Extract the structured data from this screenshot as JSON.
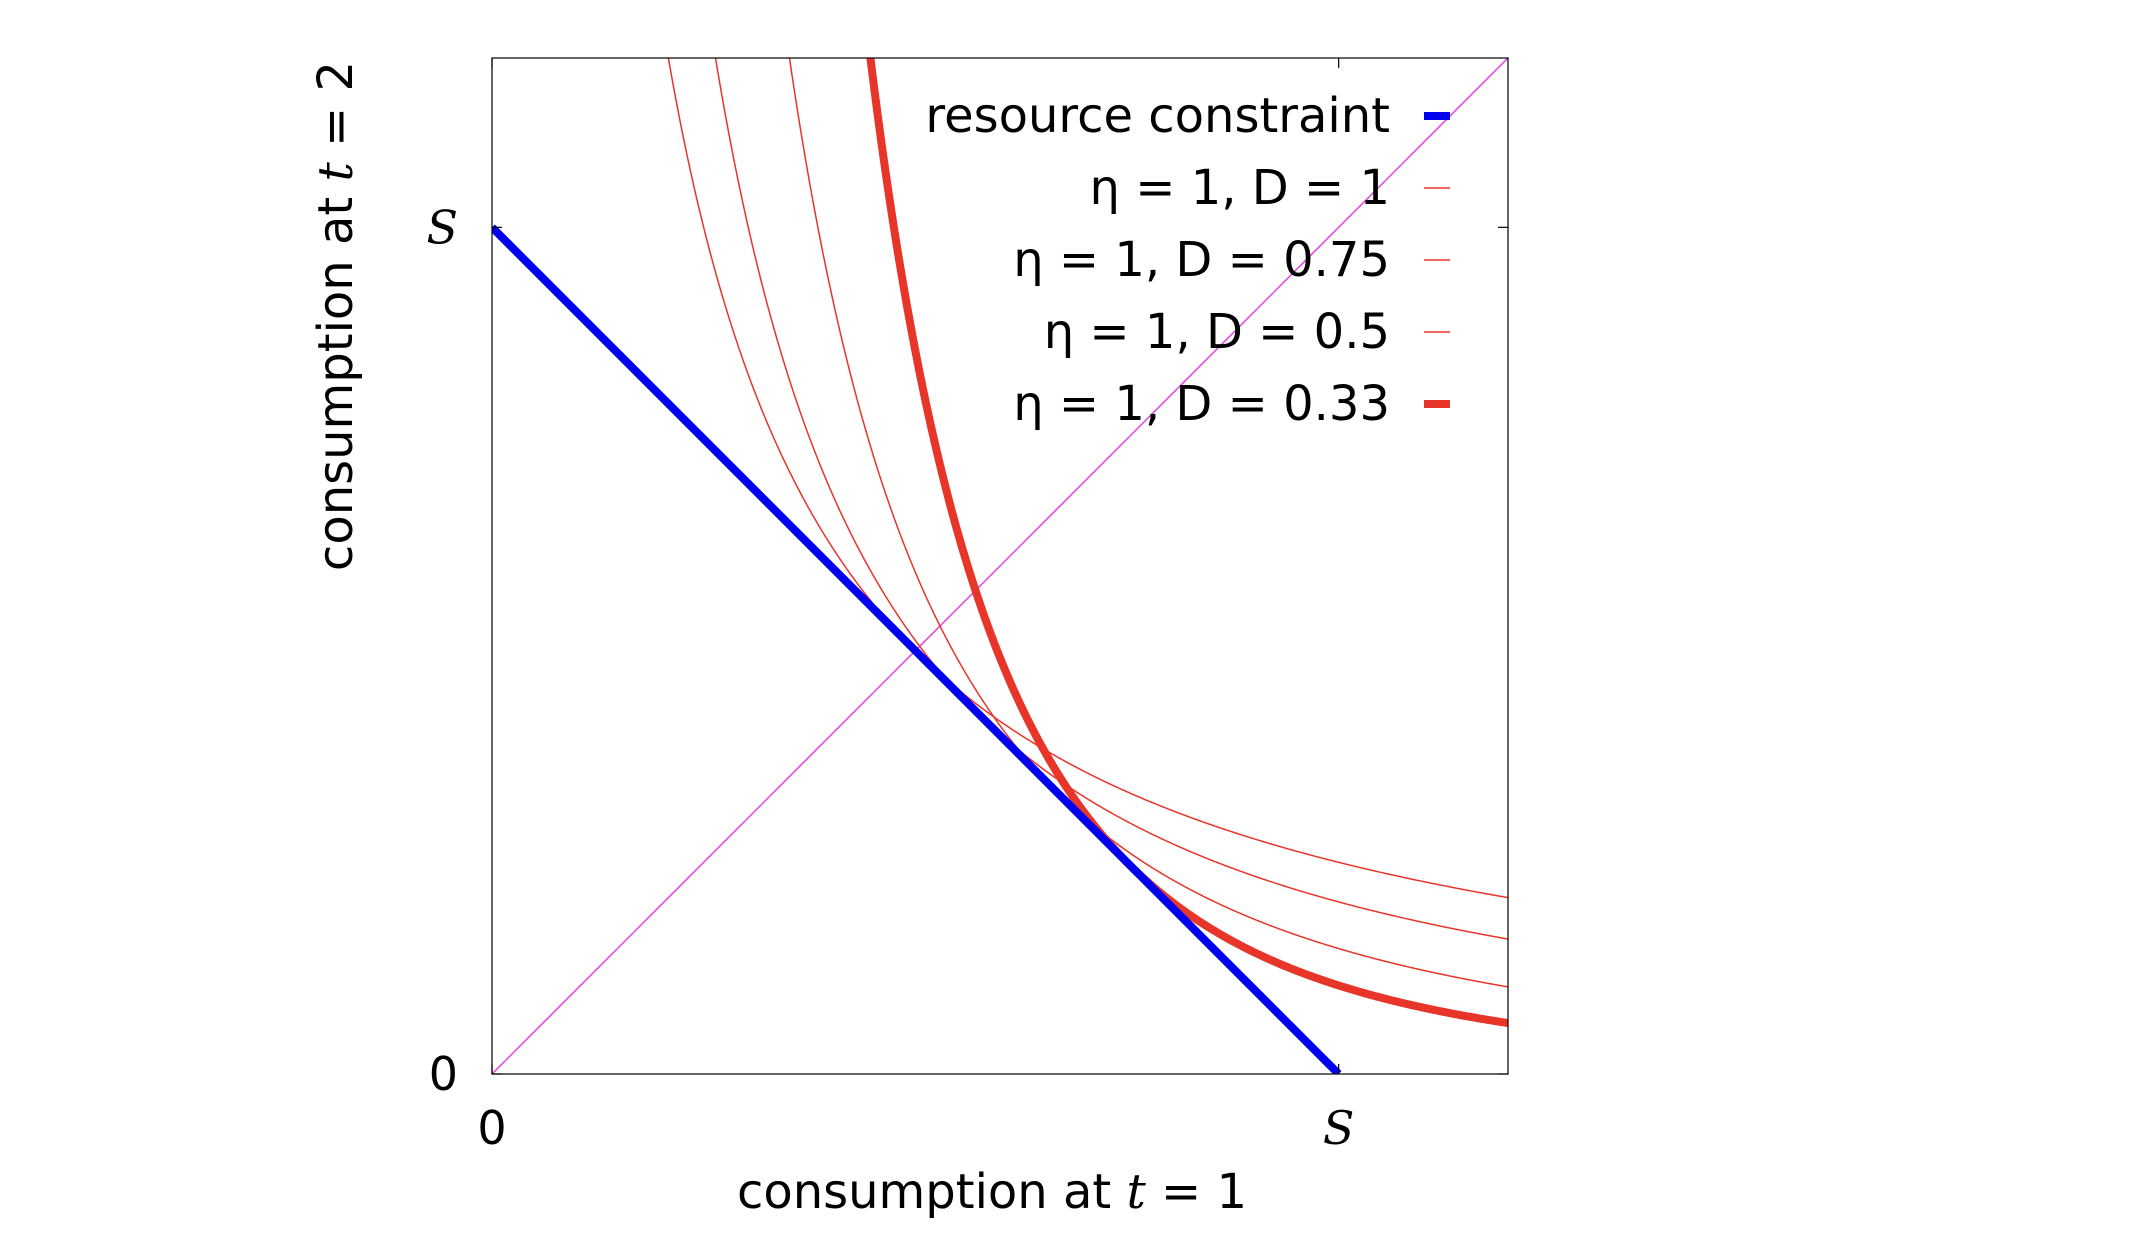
{
  "chart_data": {
    "type": "line",
    "title": "",
    "xlabel": {
      "prefix": "consumption at ",
      "var": "t",
      "suffix": " = 1"
    },
    "ylabel": {
      "prefix": "consumption at ",
      "var": "t",
      "suffix": " = 2"
    },
    "xlim": [
      0,
      1.2
    ],
    "ylim": [
      0,
      1.2
    ],
    "x_ticks": [
      {
        "value": 0,
        "label": "0",
        "italic": false
      },
      {
        "value": 1,
        "label": "S",
        "italic": true
      }
    ],
    "y_ticks": [
      {
        "value": 0,
        "label": "0",
        "italic": false
      },
      {
        "value": 1,
        "label": "S",
        "italic": true
      }
    ],
    "grid": false,
    "legend_position": "top-right",
    "colors": {
      "constraint": "#0000ee",
      "indifference": "#e8352a",
      "diagonal": "#e040e0"
    },
    "series": [
      {
        "name": "resource constraint",
        "kind": "constraint",
        "x": [
          0,
          1
        ],
        "y": [
          1,
          0
        ],
        "color": "#0000ee",
        "width": 8
      },
      {
        "name": "η = 1,  D = 1",
        "kind": "indifference",
        "eta": 1,
        "D": 1,
        "color": "#e8352a",
        "width": 1.5
      },
      {
        "name": "η = 1,  D = 0.75",
        "kind": "indifference",
        "eta": 1,
        "D": 0.75,
        "color": "#e8352a",
        "width": 1.5
      },
      {
        "name": "η = 1,  D = 0.5",
        "kind": "indifference",
        "eta": 1,
        "D": 0.5,
        "color": "#e8352a",
        "width": 1.5
      },
      {
        "name": "η = 1,  D = 0.33",
        "kind": "indifference",
        "eta": 1,
        "D": 0.33,
        "color": "#e8352a",
        "width": 8
      }
    ],
    "reference_line": {
      "kind": "diagonal",
      "x": [
        0,
        1.2
      ],
      "y": [
        0,
        1.2
      ],
      "color": "#e040e0"
    }
  }
}
